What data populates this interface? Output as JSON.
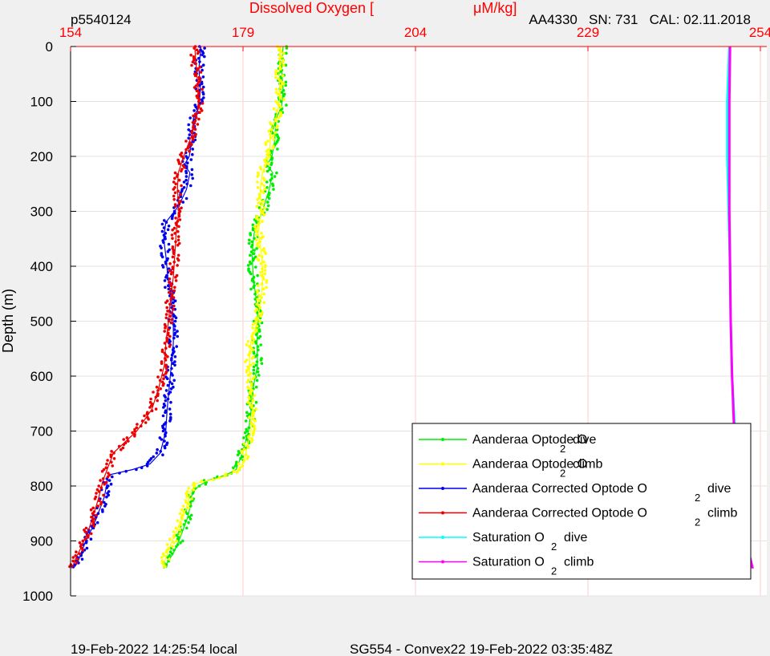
{
  "chart_data": {
    "type": "scatter",
    "title": "Dissolved Oxygen [",
    "title_unit": "μM/kg]",
    "top_left_label": "p5540124",
    "top_right_label": "AA4330   SN: 731   CAL: 02.11.2018",
    "ylabel": "Depth (m)",
    "footer_left": "19-Feb-2022 14:25:54 local",
    "footer_right": "SG554 - Convex22 19-Feb-2022 03:35:48Z",
    "x_ticks": [
      "154",
      "179",
      "204",
      "229",
      "254"
    ],
    "x_tick_values": [
      154,
      179,
      204,
      229,
      254
    ],
    "y_ticks": [
      "0",
      "100",
      "200",
      "300",
      "400",
      "500",
      "600",
      "700",
      "800",
      "900",
      "1000"
    ],
    "y_tick_values": [
      0,
      100,
      200,
      300,
      400,
      500,
      600,
      700,
      800,
      900,
      1000
    ],
    "xlim": [
      154,
      254
    ],
    "ylim": [
      1000,
      0
    ],
    "y_reversed": true,
    "x_axis_position": "top",
    "grid": true,
    "legend_position": "bottom-right",
    "colors": {
      "axis_label": "#ff0000",
      "grid": "#ffcccc",
      "background": "#f0f0f0",
      "plot_bg": "#ffffff"
    },
    "series": [
      {
        "name": "Aanderaa Optode O",
        "sub": "2",
        "suffix": "dive",
        "color": "#00ee00",
        "x": [
          184.8,
          184.6,
          184.8,
          184.6,
          183.8,
          183.6,
          183.2,
          182.5,
          183.3,
          182.8,
          182.3,
          181.8,
          180.6,
          180.3,
          180.5,
          180.9,
          181.2,
          181.0,
          181.1,
          180.5,
          180.2,
          179.8,
          178.9,
          178.3,
          178.0,
          176.5,
          173.9,
          172.6,
          171.8,
          171.5,
          171.3,
          170.9,
          170.3,
          169.7,
          169.0,
          168.0,
          167.5
        ],
        "y": [
          0,
          40,
          80,
          110,
          130,
          170,
          200,
          215,
          230,
          260,
          280,
          300,
          340,
          380,
          420,
          460,
          500,
          540,
          580,
          620,
          660,
          700,
          740,
          760,
          770,
          780,
          790,
          800,
          810,
          820,
          840,
          860,
          880,
          900,
          920,
          940,
          950
        ]
      },
      {
        "name": "Aanderaa Optode O",
        "sub": "2",
        "suffix": "climb",
        "color": "#ffff00",
        "x": [
          184.5,
          184.2,
          184.4,
          184.0,
          183.0,
          182.8,
          181.8,
          181.5,
          181.6,
          181.2,
          181.7,
          181.9,
          181.6,
          181.1,
          180.1,
          179.9,
          180.2,
          180.4,
          180.1,
          179.6,
          179.2,
          178.6,
          177.7,
          175.8,
          172.2,
          171.4,
          171.0,
          170.5,
          169.8,
          169.1,
          168.4,
          167.8,
          167.4
        ],
        "y": [
          0,
          50,
          90,
          120,
          160,
          200,
          230,
          260,
          300,
          340,
          380,
          420,
          460,
          500,
          540,
          580,
          620,
          660,
          700,
          730,
          750,
          770,
          775,
          785,
          795,
          810,
          830,
          850,
          870,
          890,
          910,
          930,
          950
        ]
      },
      {
        "name": "Aanderaa Corrected Optode O",
        "sub": "2",
        "suffix": "dive",
        "color": "#0000ee",
        "x": [
          172.9,
          172.6,
          172.8,
          172.6,
          171.8,
          171.6,
          171.2,
          170.5,
          171.3,
          170.8,
          169.7,
          167.8,
          167.5,
          167.8,
          168.1,
          168.6,
          168.9,
          168.9,
          168.6,
          168.3,
          168.0,
          167.8,
          167.0,
          165.5,
          163.0,
          159.5,
          159.2,
          158.9,
          158.3,
          157.7,
          157.0,
          156.2,
          155.6,
          155.0,
          154.4
        ],
        "y": [
          0,
          40,
          80,
          110,
          130,
          170,
          200,
          215,
          230,
          260,
          290,
          320,
          350,
          380,
          420,
          460,
          500,
          540,
          580,
          620,
          660,
          700,
          740,
          760,
          770,
          780,
          800,
          820,
          840,
          860,
          880,
          900,
          920,
          940,
          950
        ]
      },
      {
        "name": "Aanderaa Corrected Optode O",
        "sub": "2",
        "suffix": "climb",
        "color": "#ee0000",
        "x": [
          172.0,
          172.3,
          172.6,
          172.4,
          171.6,
          170.4,
          169.6,
          169.5,
          169.7,
          169.3,
          169.1,
          168.9,
          168.5,
          168.2,
          167.8,
          167.6,
          166.8,
          165.8,
          163.6,
          160.2,
          159.3,
          158.7,
          158.1,
          157.4,
          156.6,
          155.6,
          154.8,
          154.2
        ],
        "y": [
          0,
          50,
          90,
          120,
          160,
          200,
          230,
          260,
          300,
          340,
          380,
          420,
          460,
          500,
          540,
          580,
          620,
          660,
          700,
          740,
          770,
          790,
          820,
          850,
          880,
          910,
          930,
          950
        ]
      },
      {
        "name": "Saturation O",
        "sub": "2",
        "suffix": "dive",
        "color": "#00ffff",
        "x": [
          249.5,
          249.2,
          249.2,
          249.4,
          249.6,
          249.7,
          249.9,
          250.3,
          251.2,
          251.2
        ],
        "y": [
          0,
          100,
          200,
          300,
          400,
          500,
          600,
          700,
          770,
          830
        ]
      },
      {
        "name": "Saturation O",
        "sub": "2",
        "suffix": "climb",
        "color": "#ff00ff",
        "x": [
          249.6,
          249.5,
          249.5,
          249.5,
          249.6,
          249.7,
          249.9,
          250.2,
          250.6,
          251.3,
          251.6,
          251.9,
          252.2,
          252.5,
          252.9
        ],
        "y": [
          0,
          100,
          200,
          300,
          400,
          500,
          600,
          700,
          760,
          790,
          830,
          870,
          900,
          930,
          950
        ]
      }
    ]
  }
}
